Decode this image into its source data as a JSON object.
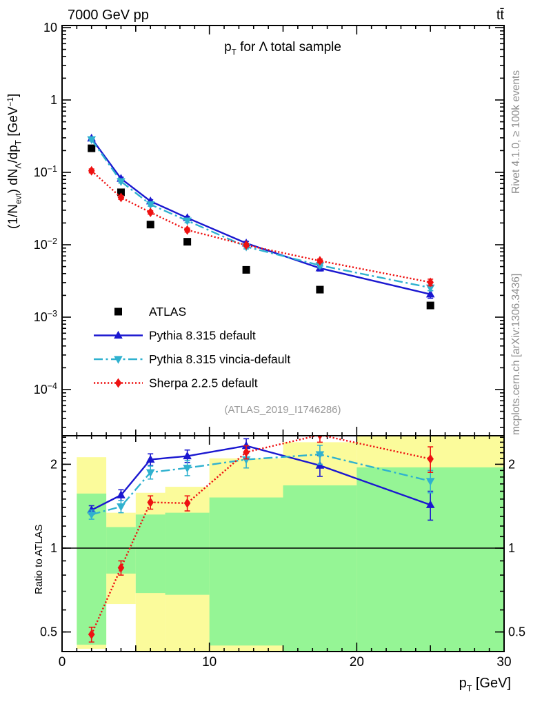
{
  "labels": {
    "header_left": "7000 GeV pp",
    "header_right": "tt̄",
    "title_parts": [
      {
        "t": "p"
      },
      {
        "sub": "T"
      },
      {
        "t": " for Λ total sample"
      }
    ],
    "main_ylabel_parts": [
      {
        "t": "(1/N"
      },
      {
        "sub": "evt"
      },
      {
        "t": ") dN"
      },
      {
        "sub": "Λ"
      },
      {
        "t": "/dp"
      },
      {
        "sub": "T"
      },
      {
        "t": " [GeV"
      },
      {
        "sup": "−1"
      },
      {
        "t": "]"
      }
    ],
    "xlabel_parts": [
      {
        "t": "p"
      },
      {
        "sub": "T"
      },
      {
        "t": " [GeV]"
      }
    ],
    "ratio_ylabel": "Ratio to ATLAS",
    "watermark": "(ATLAS_2019_I1746286)",
    "side_top": "Rivet 4.1.0, ≥ 100k events",
    "side_bottom": "mcplots.cern.ch [arXiv:1306.3436]"
  },
  "chart_data": {
    "type": "line",
    "title": "pT for Λ total sample",
    "xlabel": "pT [GeV]",
    "ylabel_main": "(1/N_evt) dN_Λ/dp_T [GeV^-1]",
    "ylabel_ratio": "Ratio to ATLAS",
    "x_axis": {
      "min": 0,
      "max": 30,
      "major_ticks": [
        0,
        10,
        20,
        30
      ],
      "medium_ticks": [
        5,
        15,
        25
      ],
      "minor_step": 1,
      "tick_labels": [
        "0",
        "10",
        "20",
        "30"
      ]
    },
    "main_axis": {
      "scale": "log",
      "min": 2.3e-05,
      "max": 10.7,
      "ticks": [
        {
          "v": 10,
          "m": "10"
        },
        {
          "v": 1,
          "m": "1"
        },
        {
          "v": 0.1,
          "m": "10",
          "e": "−1"
        },
        {
          "v": 0.01,
          "m": "10",
          "e": "−2"
        },
        {
          "v": 0.001,
          "m": "10",
          "e": "−3"
        },
        {
          "v": 0.0001,
          "m": "10",
          "e": "−4"
        }
      ]
    },
    "ratio_axis": {
      "scale": "log",
      "min": 0.425,
      "max": 2.52,
      "ticks": [
        {
          "v": 0.5,
          "m": "0.5"
        },
        {
          "v": 1,
          "m": "1"
        },
        {
          "v": 2,
          "m": "2"
        }
      ],
      "minor_ticks_from": 0.5,
      "minor_ticks_to": 2.5,
      "minor_step": 0.1,
      "unity_line": 1
    },
    "x": [
      2,
      4,
      6,
      8.5,
      12.5,
      17.5,
      25
    ],
    "series": [
      {
        "name": "ATLAS",
        "marker": "square",
        "line": "none",
        "color_key": "atlas",
        "main": [
          0.215,
          0.053,
          0.019,
          0.011,
          0.0045,
          0.0024,
          0.00145
        ]
      },
      {
        "name": "Pythia 8.315 default",
        "marker": "triangle-up",
        "line": "solid",
        "color_key": "pythia",
        "main": [
          0.295,
          0.082,
          0.04,
          0.0235,
          0.0105,
          0.00475,
          0.00207
        ],
        "ratio": [
          1.37,
          1.55,
          2.08,
          2.14,
          2.33,
          1.98,
          1.43
        ],
        "ratio_err": [
          0.05,
          0.07,
          0.1,
          0.11,
          0.14,
          0.17,
          0.17
        ]
      },
      {
        "name": "Pythia 8.315 vincia-default",
        "marker": "triangle-down",
        "line": "dashdot",
        "color_key": "vincia",
        "main": [
          0.285,
          0.075,
          0.036,
          0.0215,
          0.0094,
          0.0052,
          0.00255
        ],
        "ratio": [
          1.32,
          1.41,
          1.87,
          1.94,
          2.08,
          2.17,
          1.74
        ],
        "ratio_err": [
          0.05,
          0.07,
          0.1,
          0.12,
          0.14,
          0.17,
          0.16
        ]
      },
      {
        "name": "Sherpa 2.2.5 default",
        "marker": "diamond",
        "line": "dotted",
        "color_key": "sherpa",
        "main": [
          0.105,
          0.045,
          0.028,
          0.016,
          0.0099,
          0.006,
          0.00303
        ],
        "ratio": [
          0.49,
          0.85,
          1.46,
          1.45,
          2.21,
          2.55,
          2.09
        ],
        "ratio_err": [
          0.03,
          0.05,
          0.08,
          0.09,
          0.12,
          0.15,
          0.22
        ]
      }
    ],
    "ratio_bands": [
      {
        "x": [
          1,
          3
        ],
        "yellow": [
          0.435,
          2.12
        ],
        "green": [
          0.45,
          1.57
        ]
      },
      {
        "x": [
          3,
          5
        ],
        "yellow": [
          0.63,
          1.34
        ],
        "green": [
          0.81,
          1.19
        ]
      },
      {
        "x": [
          5,
          7
        ],
        "yellow": [
          0.4,
          1.58
        ],
        "green": [
          0.69,
          1.32
        ]
      },
      {
        "x": [
          7,
          10
        ],
        "yellow": [
          0.4,
          1.66
        ],
        "green": [
          0.68,
          1.34
        ]
      },
      {
        "x": [
          10,
          15
        ],
        "yellow": [
          0.4,
          2.1
        ],
        "green": [
          0.447,
          1.52
        ]
      },
      {
        "x": [
          15,
          20
        ],
        "yellow": [
          0.4,
          2.4
        ],
        "green": [
          0.4,
          1.68
        ]
      },
      {
        "x": [
          20,
          30
        ],
        "yellow": [
          0.4,
          2.6
        ],
        "green": [
          0.4,
          1.95
        ]
      }
    ],
    "colors": {
      "atlas": "#000000",
      "pythia": "#1a17d0",
      "vincia": "#2fb1cf",
      "sherpa": "#ee1111",
      "band_yellow": "#fbfb9b",
      "band_green": "#95f595"
    },
    "legend_position": "bottom-left-of-main-panel",
    "grid": "off"
  }
}
